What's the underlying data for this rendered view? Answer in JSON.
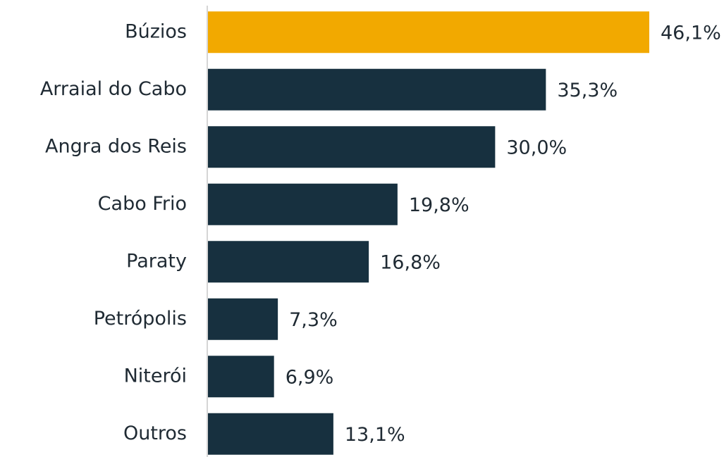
{
  "chart_data": {
    "type": "bar",
    "orientation": "horizontal",
    "categories": [
      "Búzios",
      "Arraial do Cabo",
      "Angra dos Reis",
      "Cabo Frio",
      "Paraty",
      "Petrópolis",
      "Niterói",
      "Outros"
    ],
    "values": [
      46.1,
      35.3,
      30.0,
      19.8,
      16.8,
      7.3,
      6.9,
      13.1
    ],
    "value_labels": [
      "46,1%",
      "35,3%",
      "30,0%",
      "19,8%",
      "16,8%",
      "7,3%",
      "6,9%",
      "13,1%"
    ],
    "colors": [
      "#f2a900",
      "#17303f",
      "#17303f",
      "#17303f",
      "#17303f",
      "#17303f",
      "#17303f",
      "#17303f"
    ]
  }
}
